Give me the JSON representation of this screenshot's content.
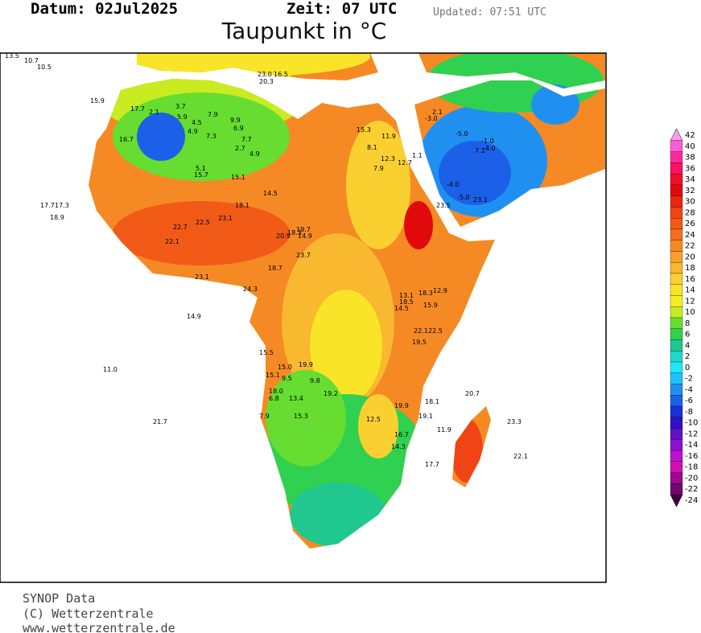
{
  "header": {
    "datum": "Datum: 02Jul2025",
    "zeit": "Zeit: 07  UTC",
    "updated": "Updated: 07:51 UTC",
    "title": "Taupunkt in °C"
  },
  "footer": [
    "SYNOP Data",
    "(C) Wetterzentrale",
    "www.wetterzentrale.de"
  ],
  "legend": {
    "ticks": [
      42,
      40,
      38,
      36,
      34,
      32,
      30,
      28,
      26,
      24,
      22,
      20,
      18,
      16,
      14,
      12,
      10,
      8,
      6,
      4,
      2,
      0,
      -2,
      -4,
      -6,
      -8,
      -10,
      -12,
      -14,
      -16,
      -18,
      -20,
      -22,
      -24
    ],
    "colors": [
      "#ff9cf0",
      "#ff5ad8",
      "#ff2a9a",
      "#ff1060",
      "#f20c28",
      "#e00a0a",
      "#e82810",
      "#f04414",
      "#f25a18",
      "#f4701e",
      "#f58a24",
      "#f7a02a",
      "#f8b830",
      "#fad030",
      "#fae428",
      "#f4f020",
      "#c8ec20",
      "#66dd30",
      "#30d050",
      "#20c890",
      "#20d8c8",
      "#20e8f8",
      "#20c0f8",
      "#2090f0",
      "#1c60e8",
      "#1a30d8",
      "#3010c8",
      "#6010c8",
      "#9010d0",
      "#c010d0",
      "#d010b0",
      "#a00890",
      "#700870",
      "#400040"
    ]
  },
  "stations": [
    "13.5",
    "10.7",
    "10.5",
    "15.9",
    "17.7",
    "16.7",
    "2.1",
    "5.9",
    "3.7",
    "4.5",
    "4.9",
    "7.3",
    "7.9",
    "9.9",
    "6.9",
    "7.7",
    "2.7",
    "4.9",
    "5.1",
    "15.7",
    "15.1",
    "18.1",
    "14.5",
    "17.7",
    "17.3",
    "18.9",
    "22.7",
    "22.5",
    "22.1",
    "23.1",
    "23.1",
    "20.9",
    "19.7",
    "14.9",
    "18.7",
    "23.7",
    "24.3",
    "14.9",
    "18.3",
    "11.0",
    "21.7",
    "15.5",
    "15.0",
    "19.9",
    "15.1",
    "9.5",
    "9.8",
    "19.2",
    "18.0",
    "6.8",
    "13.4",
    "7.9",
    "15.3",
    "12.5",
    "19.9",
    "18.1",
    "19.1",
    "20.7",
    "23.3",
    "11.9",
    "22.1",
    "17.7",
    "14.3",
    "16.7",
    "13.1",
    "18.3",
    "12.9",
    "18.5",
    "15.9",
    "14.5",
    "22.1",
    "22.5",
    "19.5",
    "15.3",
    "11.9",
    "8.1",
    "12.3",
    "7.9",
    "12.7",
    "1.1",
    "2.1",
    "-3.0",
    "-5.0",
    "-4.0",
    "7.1",
    "-1.0",
    "-4.0",
    "-5.0",
    "23.1",
    "23.5",
    "20.3",
    "16.5",
    "23.0"
  ]
}
